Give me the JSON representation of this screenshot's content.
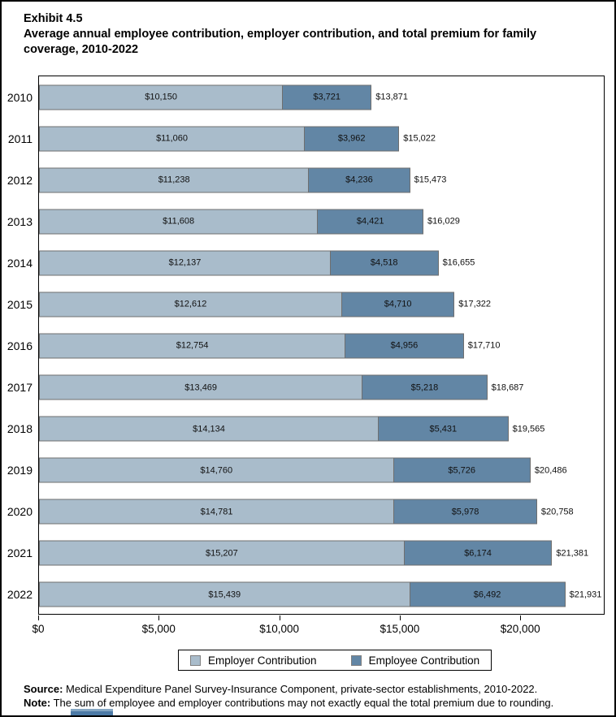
{
  "header": {
    "exhibit_label": "Exhibit 4.5",
    "title": "Average annual employee contribution, employer contribution, and total premium for family coverage, 2010-2022"
  },
  "chart_data": {
    "type": "bar",
    "orientation": "horizontal",
    "stacked": true,
    "title": "Average annual employee contribution, employer contribution, and total premium for family coverage, 2010-2022",
    "xlabel": "",
    "ylabel": "",
    "grid": false,
    "legend_position": "bottom",
    "categories": [
      "2010",
      "2011",
      "2012",
      "2013",
      "2014",
      "2015",
      "2016",
      "2017",
      "2018",
      "2019",
      "2020",
      "2021",
      "2022"
    ],
    "series": [
      {
        "name": "Employer Contribution",
        "color": "#a9bccb",
        "values": [
          10150,
          11060,
          11238,
          11608,
          12137,
          12612,
          12754,
          13469,
          14134,
          14760,
          14781,
          15207,
          15439
        ]
      },
      {
        "name": "Employee Contribution",
        "color": "#6286a5",
        "values": [
          3721,
          3962,
          4236,
          4421,
          4518,
          4710,
          4956,
          5218,
          5431,
          5726,
          5978,
          6174,
          6492
        ]
      }
    ],
    "totals": [
      13871,
      15022,
      15473,
      16029,
      16655,
      17322,
      17710,
      18687,
      19565,
      20486,
      20758,
      21381,
      21931
    ],
    "x_ticks": [
      "$0",
      "$5,000",
      "$10,000",
      "$15,000",
      "$20,000"
    ],
    "x_tick_values": [
      0,
      5000,
      10000,
      15000,
      20000
    ],
    "axis_max": 23500,
    "bar_border_color": "#6f6f6f"
  },
  "legend": {
    "items": [
      {
        "label": "Employer Contribution",
        "color": "#a9bccb"
      },
      {
        "label": "Employee Contribution",
        "color": "#6286a5"
      }
    ]
  },
  "footer": {
    "source_label": "Source:",
    "source_text": " Medical Expenditure Panel Survey-Insurance Component, private-sector establishments, 2010-2022.",
    "note_label": "Note:",
    "note_text": " The sum of employee and employer contributions may not exactly equal the total premium due to rounding."
  }
}
